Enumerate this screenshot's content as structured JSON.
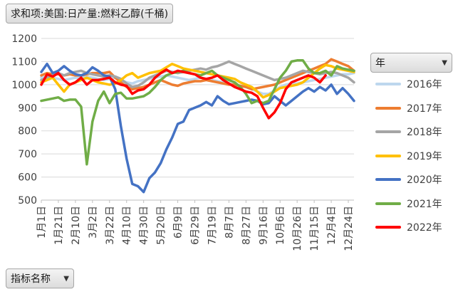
{
  "field_button": {
    "label": "求和项:美国:日产量:燃料乙醇(千桶)"
  },
  "legend_button": {
    "label": "年"
  },
  "axis_button": {
    "label": "指标名称"
  },
  "icons": {
    "dropdown": "chevron-down-icon"
  },
  "chart_data": {
    "type": "line",
    "ylim": [
      500,
      1200
    ],
    "yticks": [
      500,
      600,
      700,
      800,
      900,
      1000,
      1100,
      1200
    ],
    "x_tick_labels": [
      "1月1日",
      "1月21日",
      "2月10日",
      "3月2日",
      "3月22日",
      "4月10日",
      "4月30日",
      "5月20日",
      "6月9日",
      "6月29日",
      "7月19日",
      "8月7日",
      "8月27日",
      "9月16日",
      "10月6日",
      "10月26日",
      "11月15日",
      "12月4日",
      "12月24日"
    ],
    "x_tick_index": [
      0,
      3,
      6,
      9,
      12,
      15,
      18,
      21,
      24,
      27,
      30,
      33,
      36,
      39,
      42,
      45,
      48,
      51,
      54
    ],
    "x_count": 56,
    "grid": true,
    "legend_position": "right",
    "legend_title": "年",
    "series": [
      {
        "name": "2016年",
        "color": "#bdd7ee",
        "values": [
          1030,
          1035,
          1030,
          1025,
          1020,
          1025,
          1030,
          1030,
          1035,
          1030,
          1025,
          1020,
          1025,
          1030,
          1020,
          1010,
          1005,
          1015,
          1020,
          1025,
          1030,
          1035,
          1040,
          1035,
          1030,
          1025,
          1020,
          1025,
          1030,
          1025,
          1020,
          1015,
          1010,
          1005,
          1000,
          995,
          990,
          980,
          970,
          960,
          960,
          975,
          990,
          1000,
          1005,
          1005,
          1010,
          1015,
          1020,
          1025,
          1030,
          1035,
          1040,
          1045,
          1045,
          1050
        ]
      },
      {
        "name": "2017年",
        "color": "#ed7d31",
        "values": [
          1040,
          1050,
          1045,
          1045,
          1040,
          1045,
          1040,
          1040,
          1045,
          1050,
          1050,
          1050,
          1055,
          1030,
          1010,
          990,
          980,
          985,
          990,
          1000,
          1010,
          1020,
          1010,
          1000,
          995,
          1005,
          1010,
          1015,
          1015,
          1020,
          1015,
          1010,
          1005,
          1000,
          1000,
          995,
          990,
          980,
          985,
          990,
          995,
          1000,
          1010,
          1020,
          1030,
          1040,
          1050,
          1060,
          1070,
          1080,
          1090,
          1110,
          1100,
          1090,
          1080,
          1060
        ]
      },
      {
        "name": "2018年",
        "color": "#a5a5a5",
        "values": [
          1020,
          1030,
          1040,
          1050,
          1040,
          1050,
          1055,
          1060,
          1050,
          1045,
          1040,
          1035,
          1040,
          1035,
          1025,
          1005,
          990,
          995,
          1010,
          1030,
          1040,
          1050,
          1060,
          1055,
          1050,
          1055,
          1060,
          1065,
          1070,
          1065,
          1075,
          1080,
          1090,
          1100,
          1090,
          1080,
          1070,
          1060,
          1050,
          1040,
          1030,
          1020,
          1025,
          1030,
          1040,
          1050,
          1060,
          1055,
          1050,
          1045,
          1050,
          1055,
          1050,
          1040,
          1030,
          1010
        ]
      },
      {
        "name": "2019年",
        "color": "#ffc000",
        "values": [
          1010,
          1020,
          1030,
          1000,
          970,
          1000,
          1010,
          1020,
          1030,
          1020,
          1010,
          1005,
          1000,
          1005,
          1020,
          1040,
          1050,
          1030,
          1040,
          1050,
          1055,
          1060,
          1075,
          1090,
          1080,
          1070,
          1065,
          1060,
          1055,
          1050,
          1045,
          1040,
          1035,
          1030,
          1025,
          1010,
          1000,
          990,
          970,
          945,
          955,
          970,
          985,
          990,
          995,
          1000,
          1010,
          1030,
          1050,
          1070,
          1085,
          1080,
          1070,
          1065,
          1060,
          1055
        ]
      },
      {
        "name": "2020年",
        "color": "#4472c4",
        "values": [
          1055,
          1090,
          1050,
          1060,
          1080,
          1060,
          1045,
          1040,
          1050,
          1075,
          1060,
          1040,
          1035,
          980,
          820,
          680,
          570,
          560,
          535,
          595,
          620,
          660,
          720,
          770,
          830,
          840,
          890,
          900,
          910,
          925,
          910,
          950,
          930,
          915,
          920,
          925,
          930,
          935,
          930,
          915,
          920,
          950,
          930,
          910,
          930,
          950,
          970,
          985,
          970,
          990,
          975,
          1000,
          960,
          985,
          960,
          930
        ]
      },
      {
        "name": "2021年",
        "color": "#70ad47",
        "values": [
          930,
          935,
          940,
          945,
          930,
          935,
          935,
          905,
          655,
          840,
          930,
          970,
          920,
          960,
          965,
          940,
          940,
          945,
          950,
          965,
          990,
          1020,
          1040,
          1050,
          1055,
          1060,
          1050,
          1045,
          1040,
          1050,
          1060,
          1040,
          1030,
          1020,
          1010,
          990,
          960,
          920,
          930,
          920,
          930,
          980,
          1030,
          1060,
          1100,
          1105,
          1105,
          1070,
          1050,
          1050,
          1060,
          1040,
          1080,
          1070,
          1065,
          1060
        ]
      },
      {
        "name": "2022年",
        "color": "#ff0000",
        "values": [
          1000,
          1045,
          1035,
          1050,
          1020,
          1000,
          1010,
          1030,
          1000,
          1020,
          1020,
          1025,
          1030,
          1010,
          1000,
          995,
          960,
          975,
          980,
          1000,
          1030,
          1050,
          1065,
          1050,
          1060,
          1055,
          1050,
          1045,
          1030,
          1025,
          1030,
          1040,
          1020,
          1005,
          990,
          980,
          970,
          965,
          950,
          900,
          855,
          880,
          920,
          980,
          1010,
          1020,
          1030,
          1040,
          1030,
          1010,
          1040,
          null,
          null,
          null,
          null,
          null
        ]
      }
    ]
  }
}
